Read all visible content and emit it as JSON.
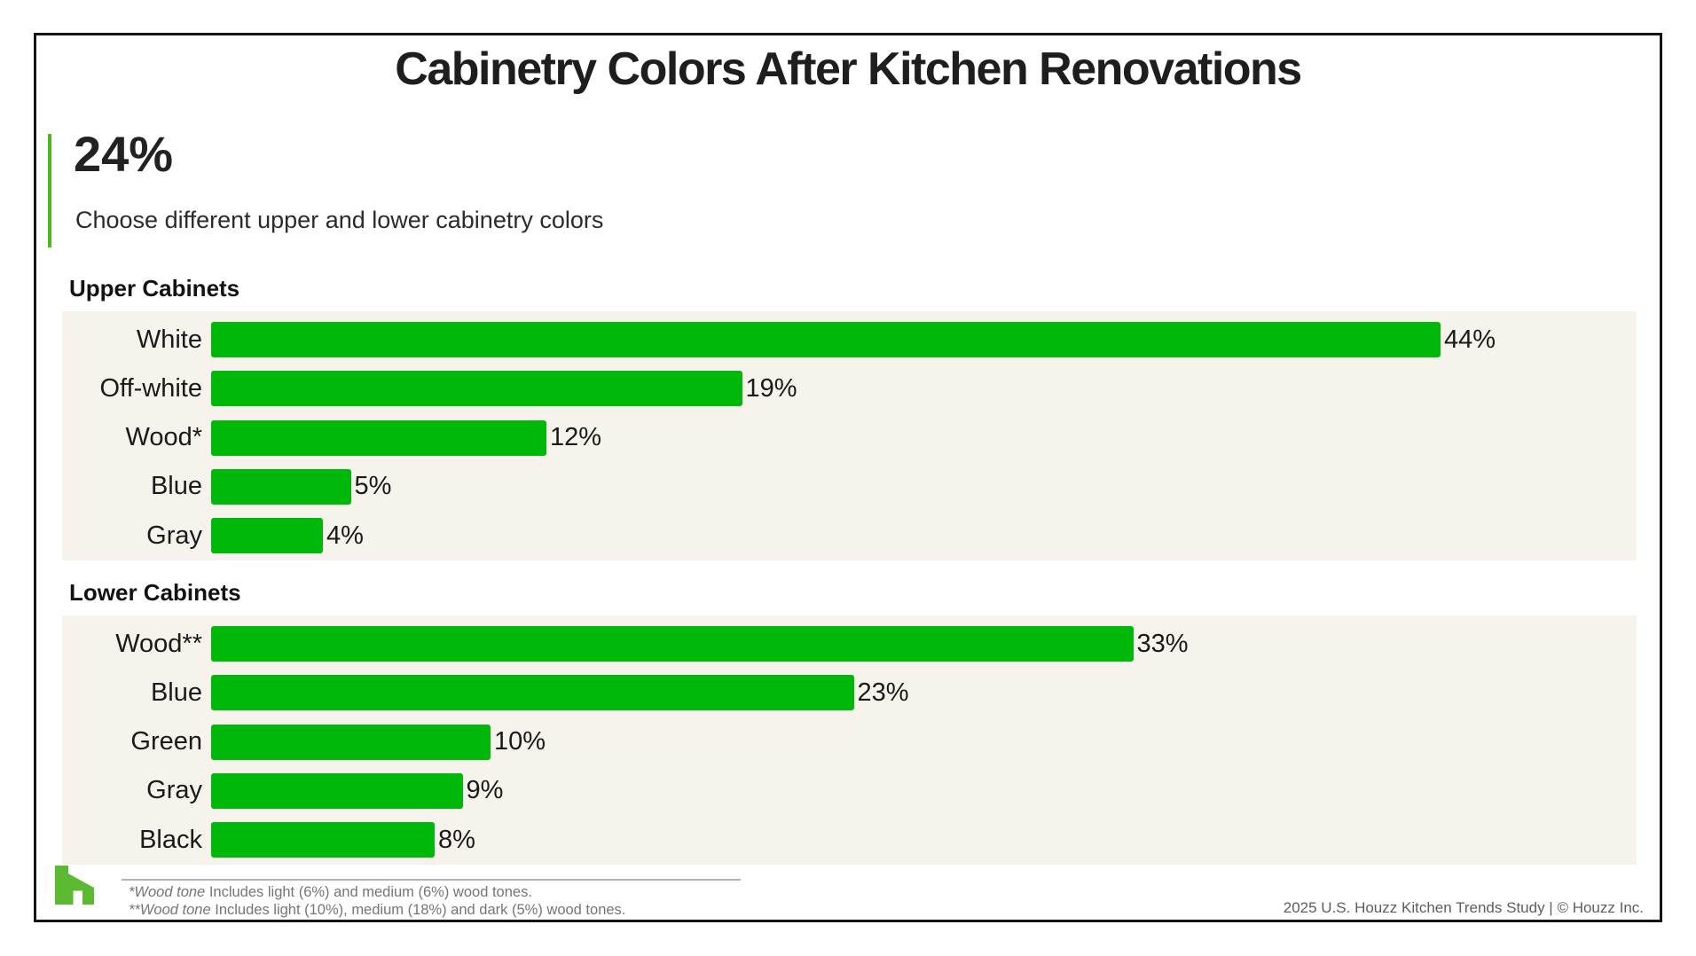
{
  "page": {
    "title": "Cabinetry Colors After Kitchen Renovations",
    "stat": {
      "value": "24%",
      "caption": "Choose different upper and lower cabinetry colors"
    },
    "footnotes": [
      {
        "prefix": "*",
        "italic": "Wood tone",
        "rest": " Includes light (6%) and medium (6%) wood tones."
      },
      {
        "prefix": "**",
        "italic": "Wood tone",
        "rest": " Includes light (10%), medium (18%) and dark (5%) wood tones."
      }
    ],
    "footer_credit": "2025 U.S. Houzz Kitchen Trends Study  |  © Houzz Inc.",
    "logo_icon": "houzz-logo"
  },
  "colors": {
    "bar_green": "#00b80a",
    "accent_green": "#4db81e",
    "logo_green": "#5cba32",
    "panel_bg": "#f6f2ec",
    "text_dark": "#1d1d1d",
    "muted_gray": "#757575"
  },
  "chart_data": [
    {
      "type": "bar",
      "orientation": "horizontal",
      "title": "Upper Cabinets",
      "categories": [
        "White",
        "Off-white",
        "Wood*",
        "Blue",
        "Gray"
      ],
      "values": [
        44,
        19,
        12,
        5,
        4
      ],
      "unit": "%",
      "xlim": [
        0,
        50
      ],
      "grid": false,
      "data_labels": "outside-end"
    },
    {
      "type": "bar",
      "orientation": "horizontal",
      "title": "Lower Cabinets",
      "categories": [
        "Wood**",
        "Blue",
        "Green",
        "Gray",
        "Black"
      ],
      "values": [
        33,
        23,
        10,
        9,
        8
      ],
      "unit": "%",
      "xlim": [
        0,
        50
      ],
      "grid": false,
      "data_labels": "outside-end"
    }
  ]
}
